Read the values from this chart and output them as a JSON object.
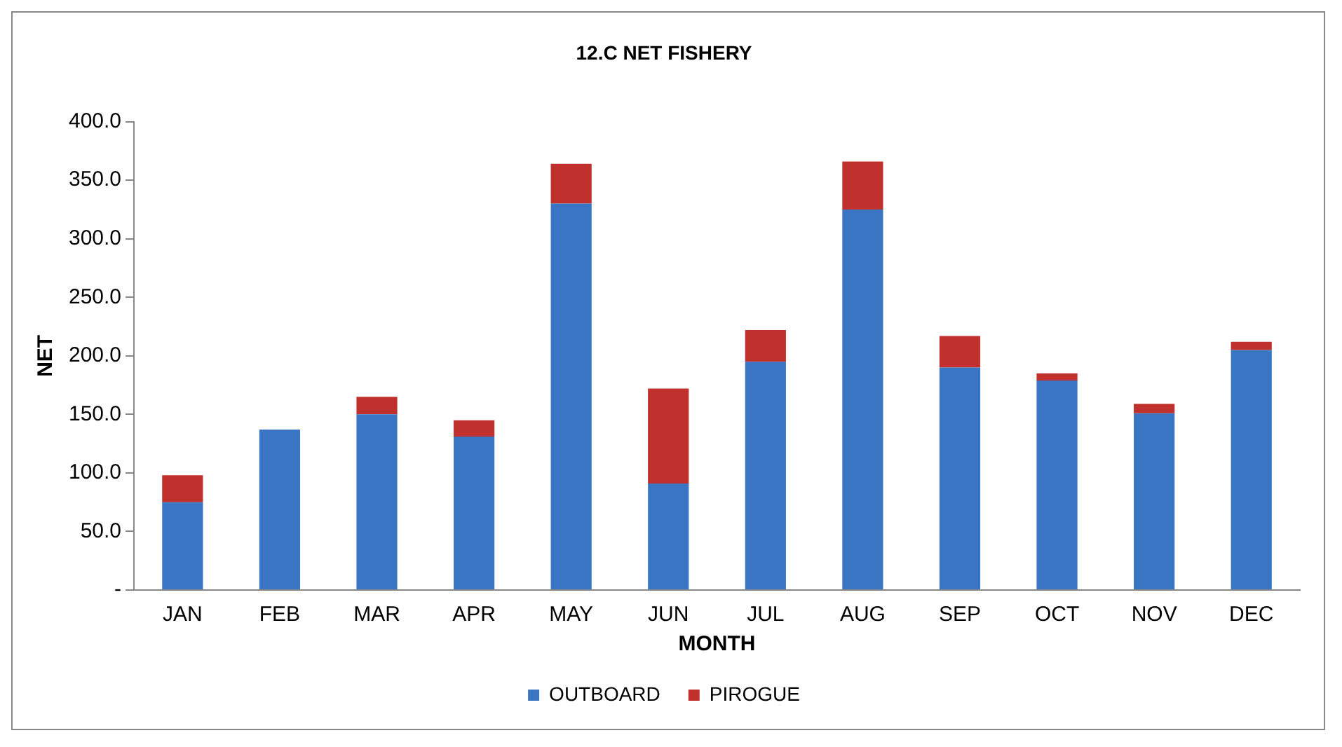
{
  "chart_data": {
    "type": "bar",
    "title": "12.C NET FISHERY",
    "xlabel": "MONTH",
    "ylabel": "NET",
    "categories": [
      "JAN",
      "FEB",
      "MAR",
      "APR",
      "MAY",
      "JUN",
      "JUL",
      "AUG",
      "SEP",
      "OCT",
      "NOV",
      "DEC"
    ],
    "series": [
      {
        "name": "OUTBOARD",
        "color": "#3a75c4",
        "values": [
          75,
          137,
          150,
          131,
          330,
          91,
          195,
          325,
          190,
          179,
          151,
          205
        ]
      },
      {
        "name": "PIROGUE",
        "color": "#c0302c",
        "values": [
          23,
          0,
          15,
          14,
          34,
          81,
          27,
          41,
          27,
          6,
          8,
          7
        ]
      }
    ],
    "stacked": true,
    "ylim": [
      0,
      400
    ],
    "yticks": [
      {
        "value": 0,
        "label": "-"
      },
      {
        "value": 50,
        "label": "50.0"
      },
      {
        "value": 100,
        "label": "100.0"
      },
      {
        "value": 150,
        "label": "150.0"
      },
      {
        "value": 200,
        "label": "200.0"
      },
      {
        "value": 250,
        "label": "250.0"
      },
      {
        "value": 300,
        "label": "300.0"
      },
      {
        "value": 350,
        "label": "350.0"
      },
      {
        "value": 400,
        "label": "400.0"
      }
    ],
    "grid": false,
    "legend": "bottom"
  }
}
